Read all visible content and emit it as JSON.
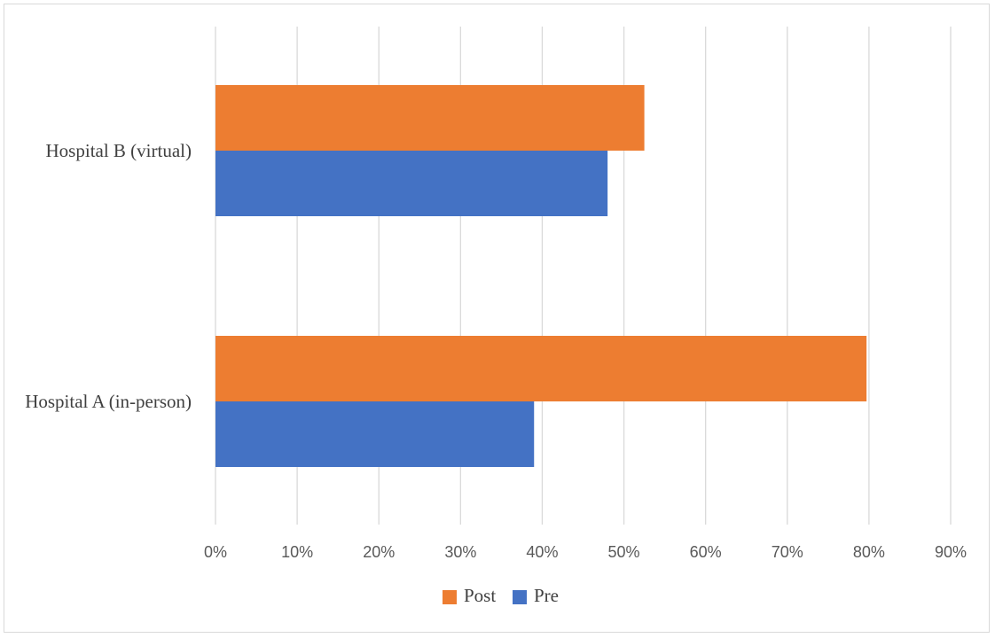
{
  "chart_data": {
    "type": "bar",
    "orientation": "horizontal",
    "categories": [
      "Hospital A (in-person)",
      "Hospital B (virtual)"
    ],
    "series": [
      {
        "name": "Pre",
        "values": [
          39,
          48
        ],
        "color": "#4472c4"
      },
      {
        "name": "Post",
        "values": [
          79.7,
          52.5
        ],
        "color": "#ed7d31"
      }
    ],
    "xlim": [
      0,
      90
    ],
    "xticks": [
      0,
      10,
      20,
      30,
      40,
      50,
      60,
      70,
      80,
      90
    ],
    "tick_suffix": "%",
    "grid": "vertical",
    "legend": "bottom-center",
    "legend_order": [
      "Post",
      "Pre"
    ]
  }
}
